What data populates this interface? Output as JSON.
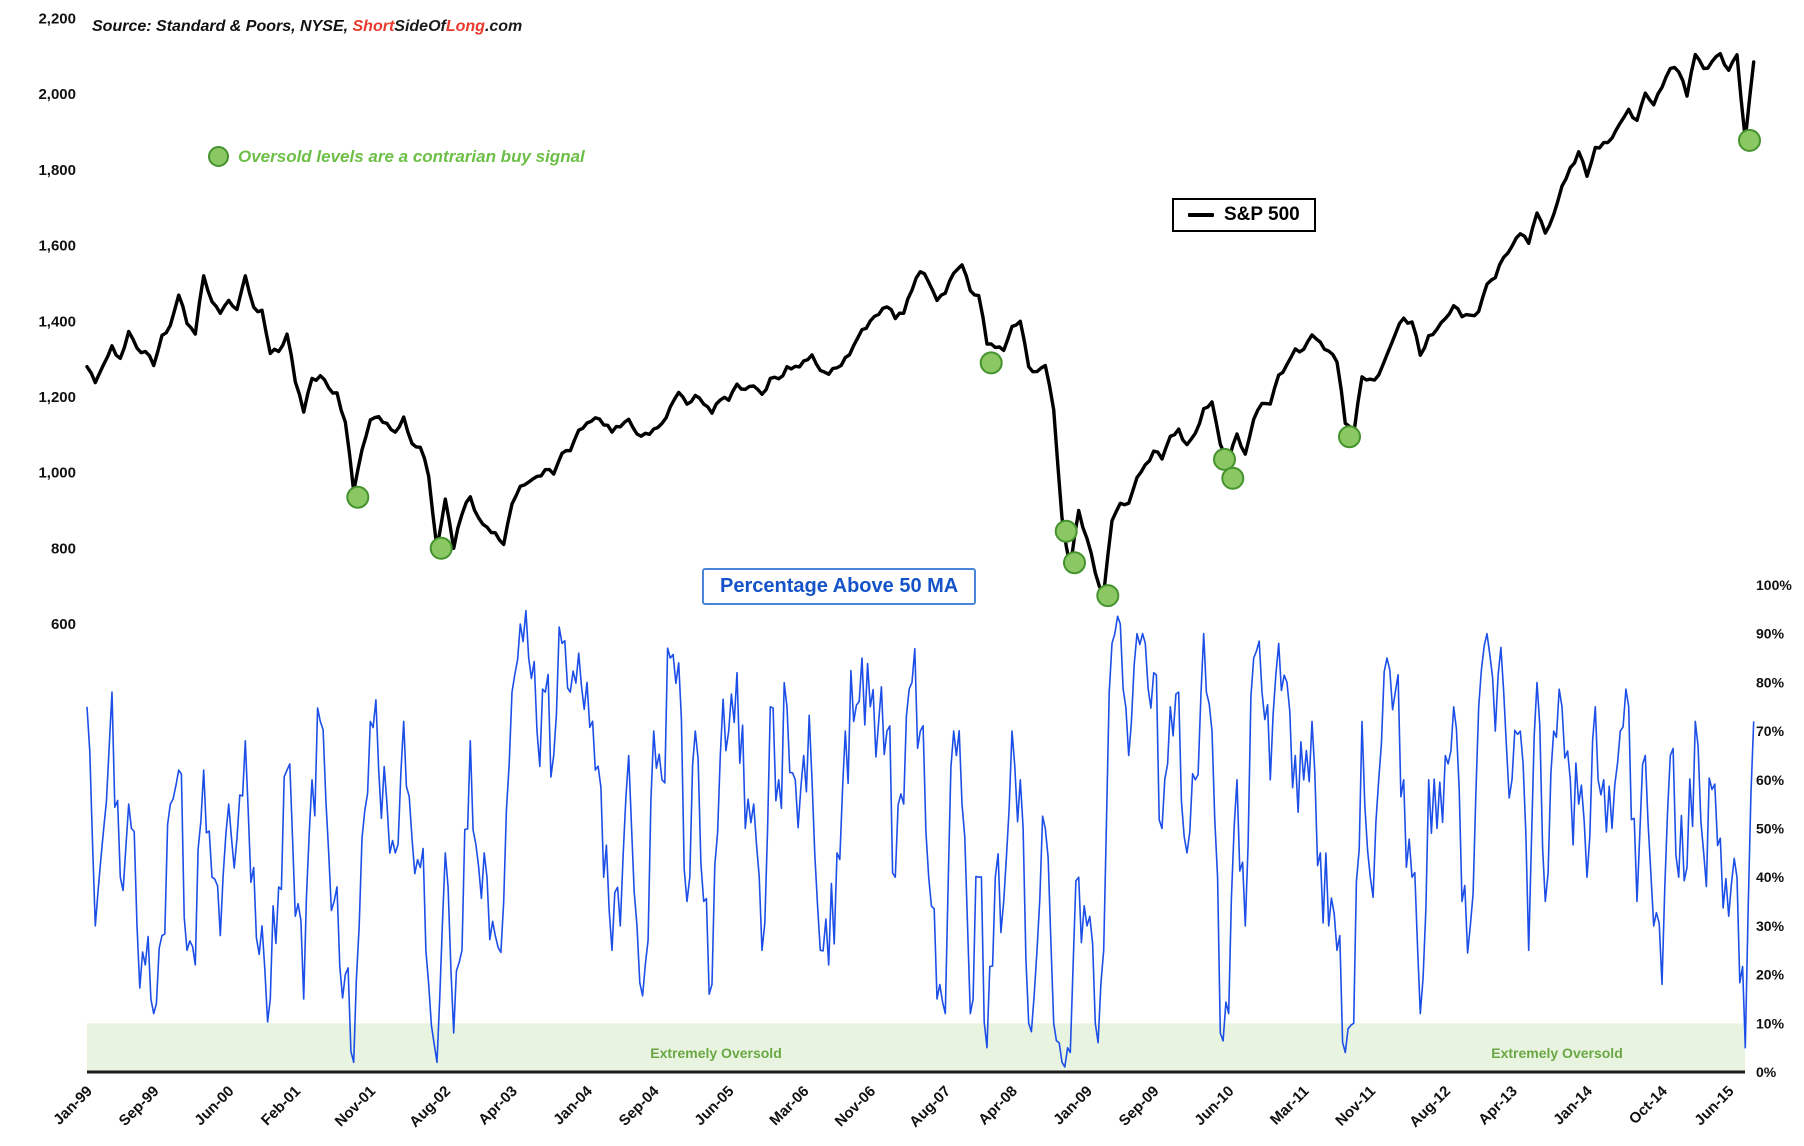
{
  "meta": {
    "source_prefix": "Source: Standard & Poors, NYSE, ",
    "brand_segments": [
      {
        "text": "Short",
        "color": "#e8392e"
      },
      {
        "text": "SideOf",
        "color": "#1a1a1a"
      },
      {
        "text": "Long",
        "color": "#e8392e"
      },
      {
        "text": ".com",
        "color": "#1a1a1a"
      }
    ]
  },
  "legend": {
    "sp500_label": "S&P 500"
  },
  "annotations": {
    "buy_signal_note": "Oversold levels are a contrarian buy signal",
    "pct_label": "Percentage Above 50 MA",
    "oversold_zone_label": "Extremely Oversold"
  },
  "colors": {
    "sp500_line": "#000000",
    "pct_line": "#1c4fe8",
    "buy_dot_fill": "#8bc863",
    "buy_dot_stroke": "#45932e",
    "band_fill": "#e9f4e0",
    "zone_text": "#69a744",
    "axis_text": "#111111",
    "baseline": "#1a1a1a"
  },
  "chart_data": {
    "type": "line",
    "x_start": "Jan-99",
    "x_end": "Sep-15",
    "interval": "monthly",
    "grid": false,
    "legend_position": "top-right",
    "series": [
      {
        "name": "S&P 500",
        "axis": "left",
        "color": "#000000",
        "values": [
          1280,
          1238,
          1286,
          1335,
          1302,
          1373,
          1329,
          1320,
          1283,
          1363,
          1389,
          1469,
          1394,
          1366,
          1520,
          1452,
          1421,
          1455,
          1431,
          1520,
          1437,
          1429,
          1315,
          1320,
          1366,
          1240,
          1160,
          1249,
          1256,
          1224,
          1211,
          1134,
          950,
          1060,
          1139,
          1148,
          1130,
          1107,
          1147,
          1077,
          1067,
          990,
          800,
          930,
          800,
          890,
          936,
          880,
          856,
          841,
          810,
          917,
          964,
          975,
          990,
          1008,
          996,
          1051,
          1058,
          1112,
          1131,
          1145,
          1126,
          1107,
          1121,
          1141,
          1102,
          1104,
          1115,
          1130,
          1174,
          1212,
          1181,
          1204,
          1181,
          1157,
          1192,
          1191,
          1234,
          1220,
          1229,
          1207,
          1249,
          1248,
          1280,
          1281,
          1295,
          1311,
          1270,
          1260,
          1277,
          1304,
          1336,
          1378,
          1401,
          1418,
          1438,
          1407,
          1421,
          1482,
          1531,
          1503,
          1455,
          1474,
          1527,
          1549,
          1481,
          1468,
          1340,
          1331,
          1323,
          1386,
          1400,
          1280,
          1267,
          1283,
          1166,
          880,
          750,
          900,
          826,
          735,
          680,
          873,
          919,
          919,
          987,
          1021,
          1057,
          1036,
          1096,
          1115,
          1074,
          1104,
          1169,
          1187,
          1075,
          1031,
          1102,
          1049,
          1141,
          1183,
          1181,
          1258,
          1286,
          1327,
          1326,
          1364,
          1345,
          1321,
          1292,
          1130,
          1100,
          1253,
          1247,
          1258,
          1312,
          1366,
          1408,
          1398,
          1310,
          1362,
          1379,
          1407,
          1441,
          1412,
          1416,
          1426,
          1498,
          1515,
          1569,
          1598,
          1631,
          1606,
          1686,
          1633,
          1682,
          1757,
          1806,
          1848,
          1783,
          1859,
          1872,
          1884,
          1924,
          1960,
          1931,
          2003,
          1972,
          2018,
          2068,
          2059,
          1995,
          2105,
          2068,
          2086,
          2107,
          2063,
          2104,
          1880,
          2085
        ]
      },
      {
        "name": "Percentage Above 50 MA",
        "axis": "right",
        "color": "#1c4fe8",
        "values": [
          75,
          30,
          50,
          78,
          40,
          55,
          30,
          22,
          12,
          28,
          55,
          62,
          25,
          22,
          62,
          40,
          28,
          55,
          48,
          68,
          42,
          30,
          15,
          38,
          62,
          32,
          15,
          60,
          72,
          45,
          38,
          20,
          2,
          48,
          72,
          62,
          55,
          45,
          72,
          48,
          42,
          18,
          2,
          45,
          8,
          25,
          68,
          42,
          40,
          28,
          35,
          78,
          92,
          85,
          70,
          78,
          65,
          88,
          78,
          86,
          80,
          62,
          40,
          25,
          30,
          65,
          30,
          22,
          70,
          60,
          85,
          84,
          35,
          70,
          35,
          18,
          65,
          70,
          82,
          50,
          55,
          25,
          75,
          60,
          75,
          60,
          65,
          60,
          25,
          22,
          45,
          70,
          72,
          85,
          75,
          72,
          70,
          40,
          55,
          80,
          70,
          40,
          15,
          12,
          70,
          55,
          12,
          40,
          5,
          40,
          35,
          70,
          60,
          10,
          25,
          50,
          10,
          2,
          4,
          40,
          30,
          10,
          25,
          88,
          92,
          65,
          90,
          88,
          82,
          50,
          75,
          78,
          45,
          60,
          90,
          70,
          8,
          12,
          60,
          30,
          85,
          78,
          60,
          88,
          80,
          65,
          60,
          72,
          45,
          30,
          25,
          4,
          10,
          72,
          40,
          60,
          85,
          78,
          60,
          40,
          12,
          60,
          50,
          65,
          75,
          35,
          30,
          75,
          90,
          70,
          78,
          60,
          70,
          25,
          80,
          35,
          70,
          75,
          60,
          55,
          40,
          75,
          60,
          50,
          70,
          75,
          35,
          65,
          30,
          18,
          65,
          40,
          42,
          72,
          45,
          58,
          48,
          32,
          40,
          5,
          72
        ]
      }
    ],
    "buy_signals": [
      {
        "date": "Sep-01",
        "value": 935
      },
      {
        "date": "Jul-02",
        "value": 800
      },
      {
        "date": "Jan-08",
        "value": 1290
      },
      {
        "date": "Oct-08",
        "value": 845
      },
      {
        "date": "Nov-08",
        "value": 762
      },
      {
        "date": "Mar-09",
        "value": 675
      },
      {
        "date": "May-10",
        "value": 1035
      },
      {
        "date": "Jun-10",
        "value": 985
      },
      {
        "date": "Aug-11",
        "value": 1095
      },
      {
        "date": "Aug-15",
        "value": 1878
      }
    ],
    "left_axis": {
      "range": [
        600,
        2200
      ],
      "tick_values": [
        2200,
        2000,
        1800,
        1600,
        1400,
        1200,
        1000,
        800,
        600
      ],
      "tick_labels": [
        "2,200",
        "2,000",
        "1,800",
        "1,600",
        "1,400",
        "1,200",
        "1,000",
        "800",
        "600"
      ]
    },
    "right_axis": {
      "range": [
        0,
        100
      ],
      "tick_values": [
        100,
        90,
        80,
        70,
        60,
        50,
        40,
        30,
        20,
        10,
        0
      ],
      "tick_labels": [
        "100%",
        "90%",
        "80%",
        "70%",
        "60%",
        "50%",
        "40%",
        "30%",
        "20%",
        "10%",
        "0%"
      ]
    },
    "x_axis": {
      "ticks": [
        "Jan-99",
        "Sep-99",
        "Jun-00",
        "Feb-01",
        "Nov-01",
        "Aug-02",
        "Apr-03",
        "Jan-04",
        "Sep-04",
        "Jun-05",
        "Mar-06",
        "Nov-06",
        "Aug-07",
        "Apr-08",
        "Jan-09",
        "Sep-09",
        "Jun-10",
        "Mar-11",
        "Nov-11",
        "Aug-12",
        "Apr-13",
        "Jan-14",
        "Oct-14",
        "Jun-15"
      ]
    },
    "oversold_band": {
      "from_pct": 0,
      "to_pct": 10
    }
  }
}
